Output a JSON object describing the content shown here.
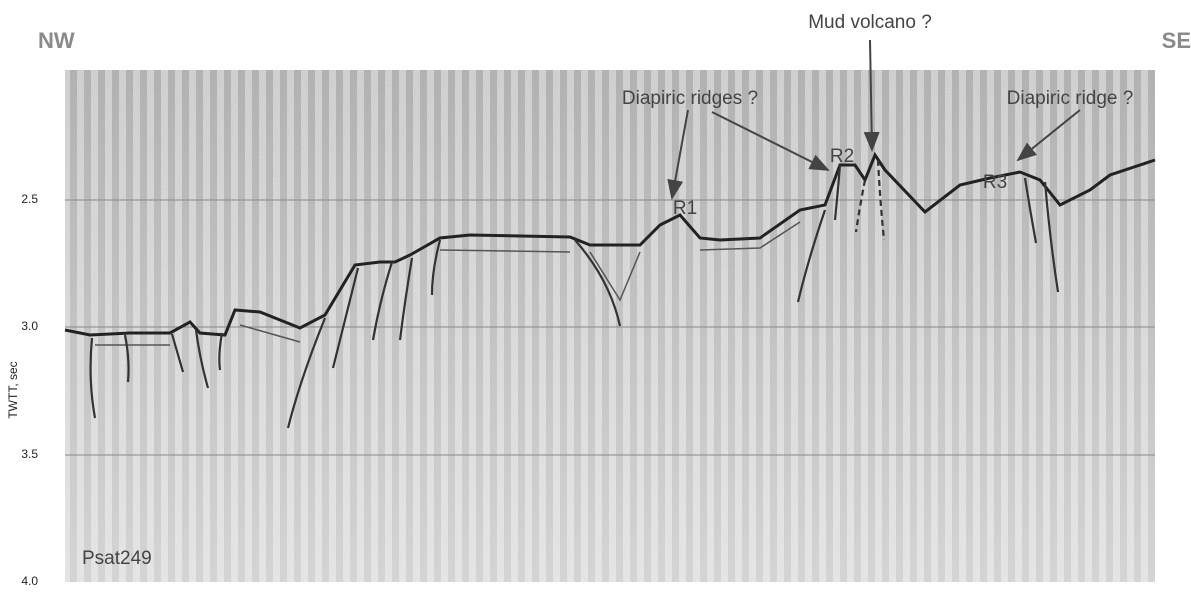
{
  "direction_labels": {
    "left": "NW",
    "right": "SE"
  },
  "axis": {
    "label": "TWTT, sec",
    "ticks": [
      "2.5",
      "3.0",
      "3.5",
      "4.0"
    ]
  },
  "annotations": {
    "diapiric_ridges": "Diapiric ridges ?",
    "mud_volcano": "Mud volcano ?",
    "diapiric_ridge": "Diapiric ridge ?",
    "r1": "R1",
    "r2": "R2",
    "r3": "R3"
  },
  "profile_name": "Psat249"
}
